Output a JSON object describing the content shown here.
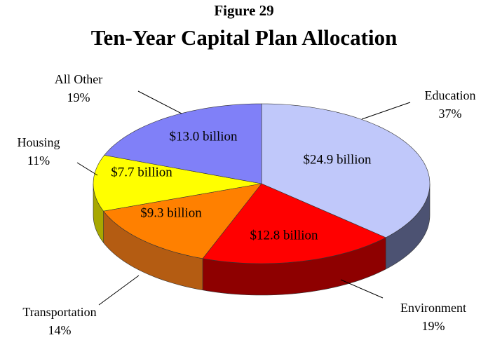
{
  "chart_data": {
    "type": "pie3d",
    "subtitle": "Figure 29",
    "title": "Ten-Year Capital Plan Allocation",
    "categories": [
      "Education",
      "Environment",
      "Transportation",
      "Housing",
      "All Other"
    ],
    "values": [
      24.9,
      12.8,
      9.3,
      7.7,
      13.0
    ],
    "value_labels": [
      "$24.9 billion",
      "$12.8 billion",
      "$9.3 billion",
      "$7.7 billion",
      "$13.0 billion"
    ],
    "percents": [
      37,
      19,
      14,
      11,
      19
    ],
    "percent_labels": [
      "37%",
      "19%",
      "14%",
      "11%",
      "19%"
    ],
    "colors": [
      "#c0c8fa",
      "#ff0000",
      "#ff8000",
      "#ffff00",
      "#8080f8"
    ],
    "side_colors": [
      "#4c5272",
      "#8e0000",
      "#b45c12",
      "#a8a800",
      "#4848a0"
    ]
  }
}
